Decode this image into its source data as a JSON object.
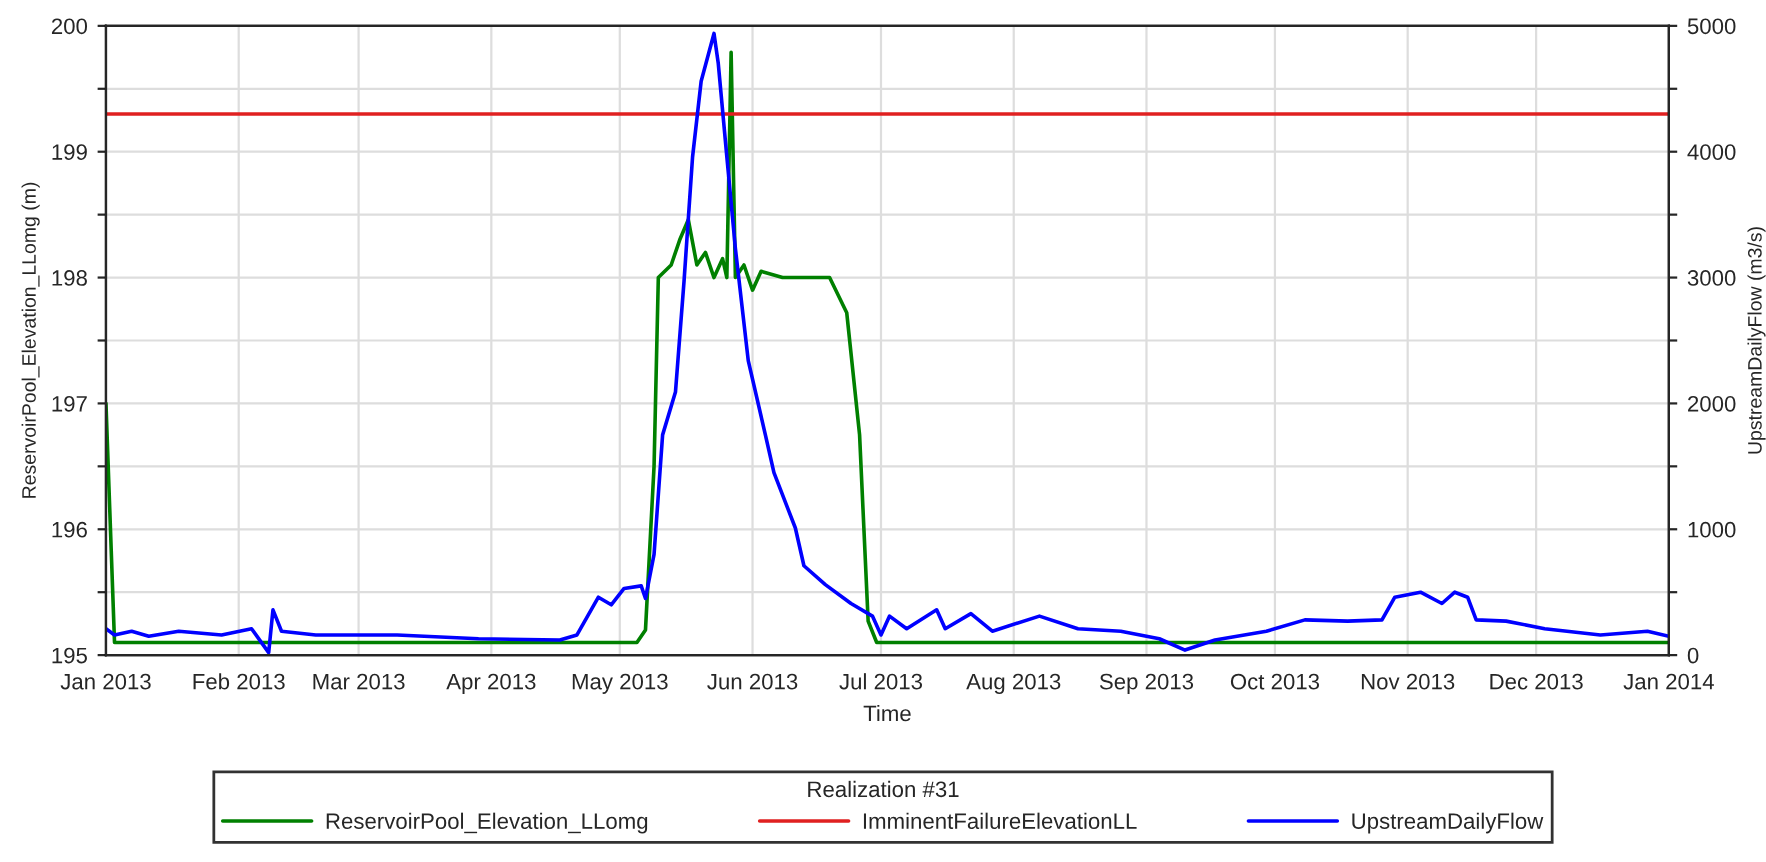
{
  "chart_data": {
    "type": "line",
    "xlabel": "Time",
    "ylabel": "ReservoirPool_Elevation_LLomg (m)",
    "y2label": "UpstreamDailyFlow (m3/s)",
    "legend_title": "Realization #31",
    "legend": "bottom",
    "grid": true,
    "line_style": "solid",
    "xlim": [
      "2013-01-01",
      "2014-01-01"
    ],
    "xticks": [
      {
        "value": "2013-01-01",
        "label": "Jan 2013"
      },
      {
        "value": "2013-02-01",
        "label": "Feb 2013"
      },
      {
        "value": "2013-03-01",
        "label": "Mar 2013"
      },
      {
        "value": "2013-04-01",
        "label": "Apr 2013"
      },
      {
        "value": "2013-05-01",
        "label": "May 2013"
      },
      {
        "value": "2013-06-01",
        "label": "Jun 2013"
      },
      {
        "value": "2013-07-01",
        "label": "Jul 2013"
      },
      {
        "value": "2013-08-01",
        "label": "Aug 2013"
      },
      {
        "value": "2013-09-01",
        "label": "Sep 2013"
      },
      {
        "value": "2013-10-01",
        "label": "Oct 2013"
      },
      {
        "value": "2013-11-01",
        "label": "Nov 2013"
      },
      {
        "value": "2013-12-01",
        "label": "Dec 2013"
      },
      {
        "value": "2014-01-01",
        "label": "Jan 2014"
      }
    ],
    "ylim": [
      195,
      200
    ],
    "yticks": [
      195,
      {
        "value": 195.5,
        "label": null
      },
      196,
      {
        "value": 196.5,
        "label": null
      },
      197,
      {
        "value": 197.5,
        "label": null
      },
      198,
      {
        "value": 198.5,
        "label": null
      },
      199,
      {
        "value": 199.5,
        "label": null
      },
      200
    ],
    "y2lim": [
      0,
      5000
    ],
    "y2ticks": [
      0,
      {
        "value": 500,
        "label": null
      },
      1000,
      {
        "value": 1500,
        "label": null
      },
      2000,
      {
        "value": 2500,
        "label": null
      },
      3000,
      {
        "value": 3500,
        "label": null
      },
      4000,
      {
        "value": 4500,
        "label": null
      },
      5000
    ],
    "series": [
      {
        "name": "ReservoirPool_Elevation_LLomg",
        "color": "#008000",
        "x": [
          "2013-01-01",
          "2013-01-03",
          "2013-05-05",
          "2013-05-07",
          "2013-05-09",
          "2013-05-10",
          "2013-05-13",
          "2013-05-15",
          "2013-05-17",
          "2013-05-19",
          "2013-05-21",
          "2013-05-23",
          "2013-05-25",
          "2013-05-26",
          "2013-05-27",
          "2013-05-28",
          "2013-05-30",
          "2013-06-01",
          "2013-06-03",
          "2013-06-08",
          "2013-06-19",
          "2013-06-23",
          "2013-06-26",
          "2013-06-28",
          "2013-06-30",
          "2014-01-01"
        ],
        "values": [
          197.0,
          195.1,
          195.1,
          195.2,
          196.5,
          198.0,
          198.1,
          198.3,
          198.46,
          198.1,
          198.2,
          198.0,
          198.15,
          198.0,
          199.79,
          198.0,
          198.1,
          197.9,
          198.05,
          198.0,
          198.0,
          197.72,
          196.75,
          195.27,
          195.1,
          195.1
        ]
      },
      {
        "name": "ImminentFailureElevationLL",
        "color": "#e02020",
        "x": [
          "2013-01-01",
          "2014-01-01"
        ],
        "values": [
          199.3,
          199.3
        ]
      },
      {
        "name": "UpstreamDailyFlow",
        "color": "#0000ff",
        "axis": "y2",
        "x": [
          "2013-01-01",
          "2013-01-03",
          "2013-01-07",
          "2013-01-11",
          "2013-01-18",
          "2013-01-28",
          "2013-02-04",
          "2013-02-08",
          "2013-02-09",
          "2013-02-11",
          "2013-02-19",
          "2013-03-10",
          "2013-03-29",
          "2013-04-17",
          "2013-04-21",
          "2013-04-26",
          "2013-04-29",
          "2013-05-02",
          "2013-05-06",
          "2013-05-07",
          "2013-05-09",
          "2013-05-11",
          "2013-05-14",
          "2013-05-16",
          "2013-05-18",
          "2013-05-20",
          "2013-05-23",
          "2013-05-24",
          "2013-05-26",
          "2013-05-28",
          "2013-05-31",
          "2013-06-04",
          "2013-06-06",
          "2013-06-11",
          "2013-06-13",
          "2013-06-18",
          "2013-06-24",
          "2013-06-29",
          "2013-07-01",
          "2013-07-03",
          "2013-07-07",
          "2013-07-14",
          "2013-07-16",
          "2013-07-22",
          "2013-07-27",
          "2013-08-07",
          "2013-08-16",
          "2013-08-26",
          "2013-09-04",
          "2013-09-10",
          "2013-09-17",
          "2013-09-29",
          "2013-10-08",
          "2013-10-18",
          "2013-10-26",
          "2013-10-29",
          "2013-11-04",
          "2013-11-09",
          "2013-11-12",
          "2013-11-15",
          "2013-11-17",
          "2013-11-24",
          "2013-12-03",
          "2013-12-16",
          "2013-12-27",
          "2014-01-01"
        ],
        "values": [
          210,
          160,
          190,
          150,
          190,
          160,
          210,
          20,
          360,
          190,
          160,
          160,
          130,
          120,
          160,
          460,
          400,
          530,
          550,
          450,
          800,
          1750,
          2090,
          2970,
          3960,
          4560,
          4940,
          4700,
          3960,
          3230,
          2340,
          1750,
          1450,
          1010,
          710,
          560,
          410,
          310,
          160,
          310,
          210,
          360,
          210,
          330,
          190,
          310,
          210,
          190,
          130,
          40,
          120,
          190,
          280,
          270,
          280,
          460,
          500,
          410,
          500,
          460,
          280,
          270,
          210,
          160,
          190,
          150
        ]
      }
    ]
  }
}
